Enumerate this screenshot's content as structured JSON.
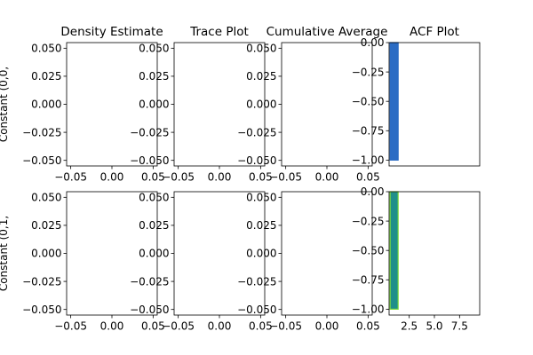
{
  "chart_data": {
    "type": "grid",
    "column_titles": [
      "Density Estimate",
      "Trace Plot",
      "Cumulative Average",
      "ACF Plot"
    ],
    "row_labels": [
      "Constant (0,0,",
      "Constant (0,1,"
    ],
    "panels": [
      {
        "row": 0,
        "col": 0,
        "type": "line",
        "xlim": [
          -0.055,
          0.055
        ],
        "ylim": [
          -0.055,
          0.055
        ],
        "xticks": [
          -0.05,
          0.0,
          0.05
        ],
        "xtick_labels": [
          "−0.05",
          "0.00",
          "0.05"
        ],
        "yticks": [
          0.05,
          0.025,
          0.0,
          -0.025,
          -0.05
        ],
        "ytick_labels": [
          "0.050",
          "0.025",
          "0.000",
          "−0.025",
          "−0.050"
        ],
        "series": []
      },
      {
        "row": 0,
        "col": 1,
        "type": "line",
        "xlim": [
          -0.055,
          0.055
        ],
        "ylim": [
          -0.055,
          0.055
        ],
        "xticks": [
          -0.05,
          0.0,
          0.05
        ],
        "xtick_labels": [
          "−0.05",
          "0.00",
          "0.05"
        ],
        "yticks": [
          0.05,
          0.025,
          0.0,
          -0.025,
          -0.05
        ],
        "ytick_labels": [
          "0.050",
          "0.025",
          "0.000",
          "−0.025",
          "−0.050"
        ],
        "series": []
      },
      {
        "row": 0,
        "col": 2,
        "type": "line",
        "xlim": [
          -0.055,
          0.055
        ],
        "ylim": [
          -0.055,
          0.055
        ],
        "xticks": [
          -0.05,
          0.0,
          0.05
        ],
        "xtick_labels": [
          "−0.05",
          "0.00",
          "0.05"
        ],
        "yticks": [
          0.05,
          0.025,
          0.0,
          -0.025,
          -0.05
        ],
        "ytick_labels": [
          "0.050",
          "0.025",
          "0.000",
          "−0.025",
          "−0.050"
        ],
        "series": []
      },
      {
        "row": 0,
        "col": 3,
        "type": "bar",
        "xlim": [
          0.5,
          9.5
        ],
        "ylim": [
          -1.05,
          0.0
        ],
        "xticks": [],
        "xtick_labels": [],
        "yticks": [
          0.0,
          -0.25,
          -0.5,
          -0.75,
          -1.0
        ],
        "ytick_labels": [
          "0.00",
          "−0.25",
          "−0.50",
          "−0.75",
          "−1.00"
        ],
        "bar_color": "#2b6cc4",
        "bar_edge": "#2b6cc4",
        "bars": [
          {
            "x": 1,
            "value": -1.0,
            "width": 0.8
          }
        ]
      },
      {
        "row": 1,
        "col": 0,
        "type": "line",
        "xlim": [
          -0.055,
          0.055
        ],
        "ylim": [
          -0.055,
          0.055
        ],
        "xticks": [
          -0.05,
          0.0,
          0.05
        ],
        "xtick_labels": [
          "−0.05",
          "0.00",
          "0.05"
        ],
        "yticks": [
          0.05,
          0.025,
          0.0,
          -0.025,
          -0.05
        ],
        "ytick_labels": [
          "0.050",
          "0.025",
          "0.000",
          "−0.025",
          "−0.050"
        ],
        "series": []
      },
      {
        "row": 1,
        "col": 1,
        "type": "line",
        "xlim": [
          -0.055,
          0.055
        ],
        "ylim": [
          -0.055,
          0.055
        ],
        "xticks": [
          -0.05,
          0.0,
          0.05
        ],
        "xtick_labels": [
          "−0.05",
          "0.00",
          "0.05"
        ],
        "yticks": [
          0.05,
          0.025,
          0.0,
          -0.025,
          -0.05
        ],
        "ytick_labels": [
          "0.050",
          "0.025",
          "0.000",
          "−0.025",
          "−0.050"
        ],
        "series": []
      },
      {
        "row": 1,
        "col": 2,
        "type": "line",
        "xlim": [
          -0.055,
          0.055
        ],
        "ylim": [
          -0.055,
          0.055
        ],
        "xticks": [
          -0.05,
          0.0,
          0.05
        ],
        "xtick_labels": [
          "−0.05",
          "0.00",
          "0.05"
        ],
        "yticks": [
          0.05,
          0.025,
          0.0,
          -0.025,
          -0.05
        ],
        "ytick_labels": [
          "0.050",
          "0.025",
          "0.000",
          "−0.025",
          "−0.050"
        ],
        "series": []
      },
      {
        "row": 1,
        "col": 3,
        "type": "bar",
        "xlim": [
          0.5,
          9.5
        ],
        "ylim": [
          -1.05,
          0.0
        ],
        "xticks": [
          2.5,
          5.0,
          7.5
        ],
        "xtick_labels": [
          "2.5",
          "5.0",
          "7.5"
        ],
        "yticks": [
          0.0,
          -0.25,
          -0.5,
          -0.75,
          -1.0
        ],
        "ytick_labels": [
          "0.00",
          "−0.25",
          "−0.50",
          "−0.75",
          "−1.00"
        ],
        "bar_color": "#1f8f8a",
        "bar_edge": "#7ddc3a",
        "bars": [
          {
            "x": 1,
            "value": -1.0,
            "width": 0.8
          }
        ]
      }
    ],
    "shared_bottom_labels": {
      "col": 3,
      "xticks": [
        2.5,
        5.0,
        7.5
      ],
      "xtick_labels": [
        "2.5",
        "5.0",
        "7.5"
      ]
    }
  }
}
